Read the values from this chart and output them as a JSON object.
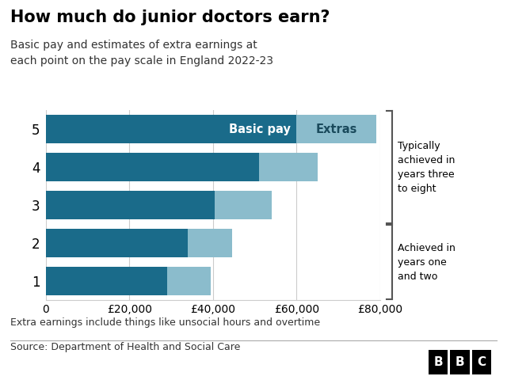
{
  "title": "How much do junior doctors earn?",
  "subtitle": "Basic pay and estimates of extra earnings at\neach point on the pay scale in England 2022-23",
  "categories": [
    "1",
    "2",
    "3",
    "4",
    "5"
  ],
  "basic_pay": [
    29000,
    34000,
    40500,
    51000,
    60000
  ],
  "extras": [
    10500,
    10500,
    13500,
    14000,
    19000
  ],
  "basic_color": "#1a6b8a",
  "extras_color": "#8bbccc",
  "xlabel_values": [
    0,
    20000,
    40000,
    60000,
    80000
  ],
  "xlabel_labels": [
    "0",
    "£20,000",
    "£40,000",
    "£60,000",
    "£80,000"
  ],
  "xlim": [
    0,
    80000
  ],
  "annotation_top": "Typically\nachieved in\nyears three\nto eight",
  "annotation_bottom": "Achieved in\nyears one\nand two",
  "footnote": "Extra earnings include things like unsocial hours and overtime",
  "source": "Source: Department of Health and Social Care",
  "bg_color": "#ffffff",
  "label_basic": "Basic pay",
  "label_extras": "Extras",
  "grid_color": "#cccccc",
  "text_color": "#333333"
}
